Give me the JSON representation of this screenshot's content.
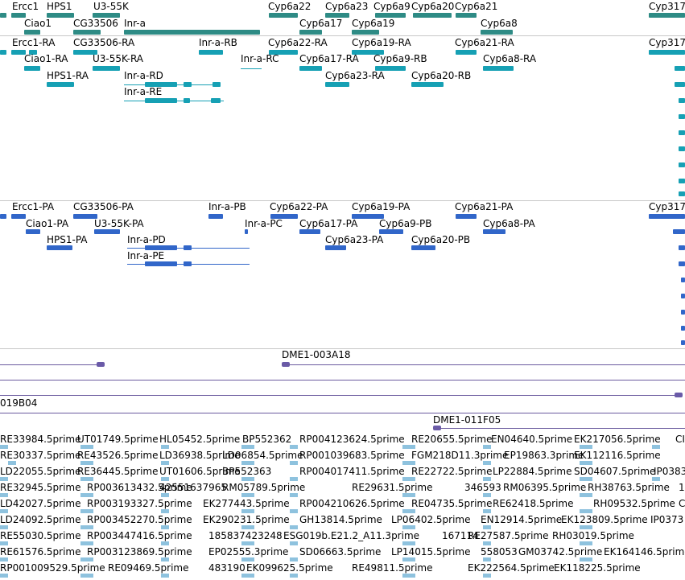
{
  "colors": {
    "gene": "#2e8b85",
    "rna": "#16a0b4",
    "protein": "#3166c9",
    "clone": "#6a5aa8",
    "est": "#8ec2de",
    "separator": "#c8c8c8"
  },
  "gene_track": {
    "row1": [
      "Ercc1",
      "HPS1",
      "U3-55K",
      "Cyp6a22",
      "Cyp6a23",
      "Cyp6a9",
      "Cyp6a20",
      "Cyp6a21",
      "Cyp317"
    ],
    "row2": [
      "Ciao1",
      "CG33506",
      "Inr-a",
      "Cyp6a17",
      "Cyp6a19",
      "Cyp6a8"
    ]
  },
  "rna_track": {
    "row1": [
      "Ercc1-RA",
      "CG33506-RA",
      "Inr-a-RB",
      "Cyp6a22-RA",
      "Cyp6a19-RA",
      "Cyp6a21-RA",
      "Cyp317"
    ],
    "row2": [
      "Ciao1-RA",
      "U3-55K-RA",
      "Inr-a-RC",
      "Cyp6a17-RA",
      "Cyp6a9-RB",
      "Cyp6a8-RA"
    ],
    "row3": [
      "HPS1-RA",
      "Inr-a-RD",
      "Cyp6a23-RA",
      "Cyp6a20-RB"
    ],
    "row4": [
      "Inr-a-RE"
    ]
  },
  "protein_track": {
    "row1": [
      "Ercc1-PA",
      "CG33506-PA",
      "Inr-a-PB",
      "Cyp6a22-PA",
      "Cyp6a19-PA",
      "Cyp6a21-PA",
      "Cyp317"
    ],
    "row2": [
      "Ciao1-PA",
      "U3-55K-PA",
      "Inr-a-PC",
      "Cyp6a17-PA",
      "Cyp6a9-PB",
      "Cyp6a8-PA"
    ],
    "row3": [
      "HPS1-PA",
      "Inr-a-PD",
      "Cyp6a23-PA",
      "Cyp6a20-PB"
    ],
    "row4": [
      "Inr-a-PE"
    ]
  },
  "clone_track": {
    "labels": [
      "DME1-003A18",
      "019B04",
      "DME1-011F05"
    ]
  },
  "est_track": {
    "rows": [
      [
        "RE33984.5prime",
        "UT01749.5prime",
        "HL05452.5prime",
        "BP552362",
        "RP004123624.5prime",
        "RE20655.5prime",
        "EN04640.5prime",
        "EK217056.5prime",
        "CI"
      ],
      [
        "RE30337.5prime",
        "RE43526.5prime",
        "LD36938.5prime",
        "LD06854.5prime",
        "RP001039683.5prime",
        "FGM218D11.3prime",
        "EP19863.3prime",
        "EK112116.5prime"
      ],
      [
        "LD22055.5prime",
        "RE36445.5prime",
        "UT01606.5prime",
        "BP552363",
        "RP004017411.5prime",
        "RE22722.5prime",
        "LP22884.5prime",
        "SD04607.5prime",
        "IP0383"
      ],
      [
        "RE32945.5prime",
        "RP003613432.5prime",
        "42551637965",
        "RM05789.5prime",
        "RE29631.5prime",
        "346593",
        "RM06395.5prime",
        "RH38763.5prime",
        "1"
      ],
      [
        "LD42027.5prime",
        "RP003193327.5prime",
        "EK277443.5prime",
        "RP004210626.5prime",
        "RE04735.5prime",
        "RE62418.5prime",
        "RH09532.5prime",
        "C"
      ],
      [
        "LD24092.5prime",
        "RP003452270.5prime",
        "EK290231.5prime",
        "GH13814.5prime",
        "LP06402.5prime",
        "EN12914.5prime",
        "EK123809.5prime",
        "IP0373"
      ],
      [
        "RE55030.5prime",
        "RP003447416.5prime",
        "185837423248",
        "ESG019b.E21.2_A11.3prime",
        "167114",
        "RE27587.5prime",
        "RH03019.5prime"
      ],
      [
        "RE61576.5prime",
        "RP003123869.5prime",
        "EP02555.3prime",
        "SD06663.5prime",
        "LP14015.5prime",
        "558053",
        "GM03742.5prime",
        "EK164146.5prime"
      ],
      [
        "RP001009529.5prime",
        "RE09469.5prime",
        "483190",
        "EK099625.5prime",
        "RE49811.5prime",
        "EK222564.5prime",
        "EK118225.5prime"
      ]
    ]
  }
}
